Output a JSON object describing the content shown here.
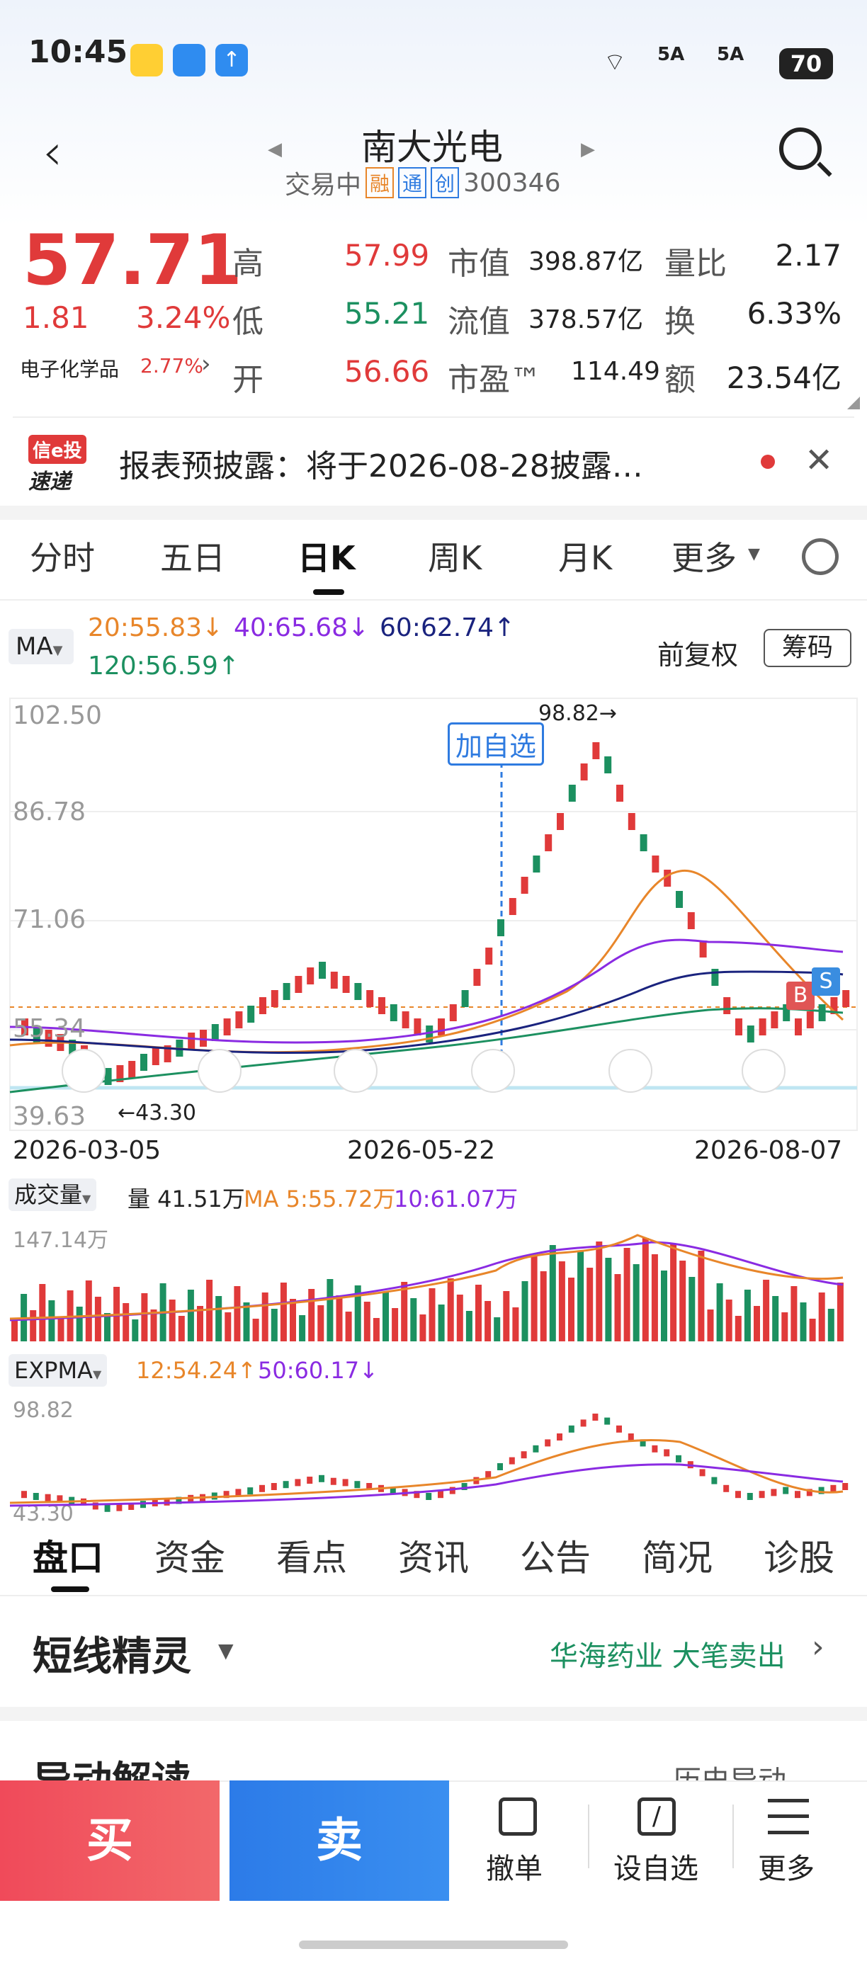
{
  "status": {
    "time": "10:45",
    "net1": "5A",
    "net2": "5A",
    "battery": "70"
  },
  "header": {
    "title": "南大光电",
    "status": "交易中",
    "tag1": "融",
    "tag2": "通",
    "tag3": "创",
    "code": "300346"
  },
  "quote": {
    "price": "57.71",
    "change": "1.81",
    "pct": "3.24%",
    "sector": "电子化学品",
    "sector_pct": "2.77%",
    "high_label": "高",
    "high": "57.99",
    "low_label": "低",
    "low": "55.21",
    "open_label": "开",
    "open": "56.66",
    "mcap_label": "市值",
    "mcap": "398.87亿",
    "fcap_label": "流值",
    "fcap": "378.57亿",
    "pe_label": "市盈™",
    "pe": "114.49",
    "vr_label": "量比",
    "vr": "2.17",
    "to_label": "换",
    "to": "6.33%",
    "amt_label": "额",
    "amt": "23.54亿"
  },
  "notice": {
    "logo1": "信e投",
    "logo2": "速递",
    "text": "报表预披露：将于2026-08-28披露…"
  },
  "tabs": [
    "分时",
    "五日",
    "日K",
    "周K",
    "月K",
    "更多"
  ],
  "ma": {
    "selector": "MA",
    "m20": "20:55.83↓",
    "m40": "40:65.68↓",
    "m60": "60:62.74↑",
    "m120": "120:56.59↑",
    "adjust": "前复权",
    "chips": "筹码"
  },
  "chart_data": {
    "type": "candlestick",
    "y_ticks": [
      "102.50",
      "86.78",
      "71.06",
      "55.34",
      "39.63"
    ],
    "x_ticks": [
      "2026-03-05",
      "2026-05-22",
      "2026-08-07"
    ],
    "high_mark": "98.82→",
    "low_mark": "←43.30",
    "add_watch": "加自选",
    "buy_flag": "B",
    "sell_flag": "S",
    "colors": {
      "up": "#e03a3a",
      "down": "#1c9060",
      "ma20": "#e8862a",
      "ma40": "#8a2be2",
      "ma60": "#1a237e",
      "ma120": "#1c9060"
    }
  },
  "volume": {
    "selector": "成交量",
    "label": "量 41.51万",
    "ma5": "MA 5:55.72万",
    "ma10": "10:61.07万",
    "ymax": "147.14万"
  },
  "expma": {
    "selector": "EXPMA",
    "e12": "12:54.24↑",
    "e50": "50:60.17↓",
    "ymax": "98.82",
    "ymin": "43.30"
  },
  "bottom_tabs": [
    "盘口",
    "资金",
    "看点",
    "资讯",
    "公告",
    "简况",
    "诊股"
  ],
  "spirit": {
    "title": "短线精灵",
    "item": "华海药业  大笔卖出"
  },
  "section2": {
    "title": "异动解读",
    "link": "历史异动"
  },
  "actions": {
    "buy": "买",
    "sell": "卖",
    "cancel": "撤单",
    "watch": "设自选",
    "more": "更多"
  }
}
